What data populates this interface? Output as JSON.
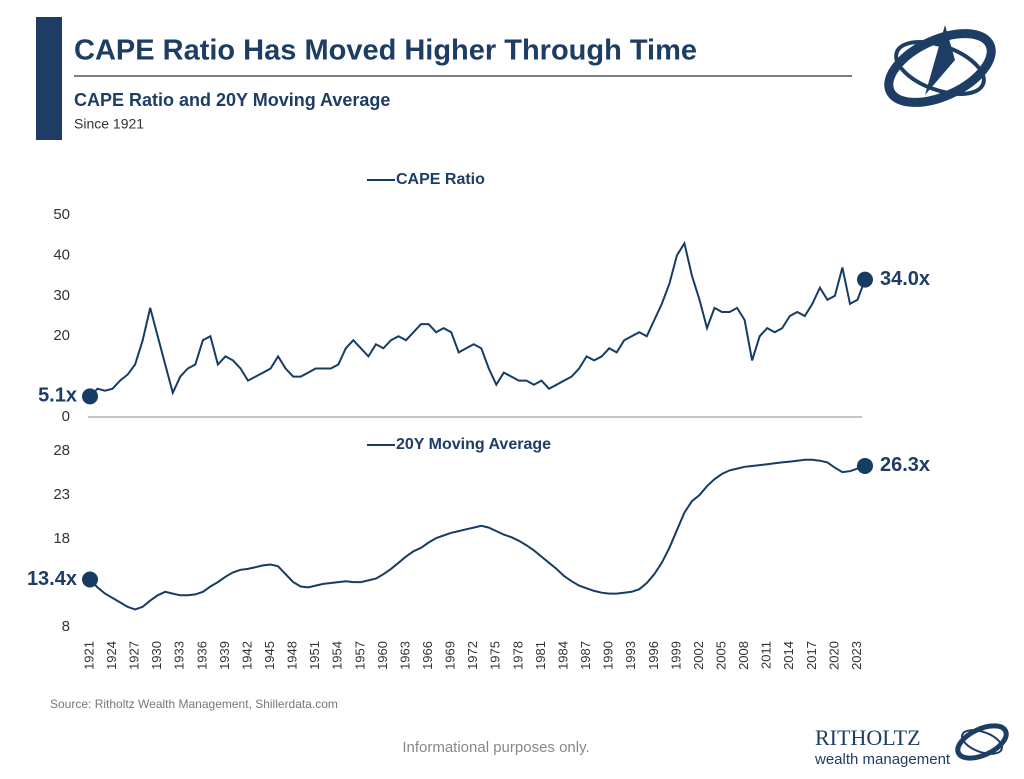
{
  "header": {
    "title": "CAPE Ratio Has Moved Higher Through Time",
    "subtitle": "CAPE Ratio and 20Y Moving Average",
    "since": "Since 1921"
  },
  "source": "Source: Ritholtz Wealth Management, Shillerdata.com",
  "footer": "Informational purposes only.",
  "logo": {
    "name": "RITHOLTZ",
    "tagline": "wealth management"
  },
  "chart_data": [
    {
      "type": "line",
      "xlim": [
        1921,
        2024
      ],
      "ylim": [
        0,
        50
      ],
      "yticks": [
        0,
        20,
        30,
        40,
        50
      ],
      "x": [
        1921,
        1922,
        1923,
        1924,
        1925,
        1926,
        1927,
        1928,
        1929,
        1930,
        1931,
        1932,
        1933,
        1934,
        1935,
        1936,
        1937,
        1938,
        1939,
        1940,
        1941,
        1942,
        1943,
        1944,
        1945,
        1946,
        1947,
        1948,
        1949,
        1950,
        1951,
        1952,
        1953,
        1954,
        1955,
        1956,
        1957,
        1958,
        1959,
        1960,
        1961,
        1962,
        1963,
        1964,
        1965,
        1966,
        1967,
        1968,
        1969,
        1970,
        1971,
        1972,
        1973,
        1974,
        1975,
        1976,
        1977,
        1978,
        1979,
        1980,
        1981,
        1982,
        1983,
        1984,
        1985,
        1986,
        1987,
        1988,
        1989,
        1990,
        1991,
        1992,
        1993,
        1994,
        1995,
        1996,
        1997,
        1998,
        1999,
        2000,
        2001,
        2002,
        2003,
        2004,
        2005,
        2006,
        2007,
        2008,
        2009,
        2010,
        2011,
        2012,
        2013,
        2014,
        2015,
        2016,
        2017,
        2018,
        2019,
        2020,
        2021,
        2022,
        2023,
        2024
      ],
      "series": [
        {
          "name": "CAPE Ratio",
          "color": "#173c63",
          "values": [
            5.1,
            7,
            6.5,
            7,
            9,
            10.5,
            13,
            19,
            27,
            20,
            13,
            6,
            10,
            12,
            13,
            19,
            20,
            13,
            15,
            14,
            12,
            9,
            10,
            11,
            12,
            15,
            12,
            10,
            10,
            11,
            12,
            12,
            12,
            13,
            17,
            19,
            17,
            15,
            18,
            17,
            19,
            20,
            19,
            21,
            23,
            23,
            21,
            22,
            21,
            16,
            17,
            18,
            17,
            12,
            8,
            11,
            10,
            9,
            9,
            8,
            9,
            7,
            8,
            9,
            10,
            12,
            15,
            14,
            15,
            17,
            16,
            19,
            20,
            21,
            20,
            24,
            28,
            33,
            40,
            43,
            35,
            29,
            22,
            27,
            26,
            26,
            27,
            24,
            14,
            20,
            22,
            21,
            22,
            25,
            26,
            25,
            28,
            32,
            29,
            30,
            37,
            28,
            29,
            34
          ]
        }
      ],
      "end_labels": [
        "5.1x",
        "34.0x"
      ]
    },
    {
      "type": "line",
      "xlim": [
        1921,
        2024
      ],
      "ylim": [
        8,
        28
      ],
      "yticks": [
        8,
        18,
        23,
        28
      ],
      "xticks": [
        1921,
        1924,
        1927,
        1930,
        1933,
        1936,
        1939,
        1942,
        1945,
        1948,
        1951,
        1954,
        1957,
        1960,
        1963,
        1966,
        1969,
        1972,
        1975,
        1978,
        1981,
        1984,
        1987,
        1990,
        1993,
        1996,
        1999,
        2002,
        2005,
        2008,
        2011,
        2014,
        2017,
        2020,
        2023
      ],
      "x": [
        1921,
        1922,
        1923,
        1924,
        1925,
        1926,
        1927,
        1928,
        1929,
        1930,
        1931,
        1932,
        1933,
        1934,
        1935,
        1936,
        1937,
        1938,
        1939,
        1940,
        1941,
        1942,
        1943,
        1944,
        1945,
        1946,
        1947,
        1948,
        1949,
        1950,
        1951,
        1952,
        1953,
        1954,
        1955,
        1956,
        1957,
        1958,
        1959,
        1960,
        1961,
        1962,
        1963,
        1964,
        1965,
        1966,
        1967,
        1968,
        1969,
        1970,
        1971,
        1972,
        1973,
        1974,
        1975,
        1976,
        1977,
        1978,
        1979,
        1980,
        1981,
        1982,
        1983,
        1984,
        1985,
        1986,
        1987,
        1988,
        1989,
        1990,
        1991,
        1992,
        1993,
        1994,
        1995,
        1996,
        1997,
        1998,
        1999,
        2000,
        2001,
        2002,
        2003,
        2004,
        2005,
        2006,
        2007,
        2008,
        2009,
        2010,
        2011,
        2012,
        2013,
        2014,
        2015,
        2016,
        2017,
        2018,
        2019,
        2020,
        2021,
        2022,
        2023,
        2024
      ],
      "series": [
        {
          "name": "20Y Moving Average",
          "color": "#173c63",
          "values": [
            13.4,
            12.5,
            11.8,
            11.3,
            10.8,
            10.3,
            10,
            10.3,
            11,
            11.6,
            12,
            11.8,
            11.6,
            11.6,
            11.7,
            12,
            12.6,
            13.1,
            13.7,
            14.2,
            14.5,
            14.6,
            14.8,
            15,
            15.1,
            14.9,
            14,
            13.1,
            12.6,
            12.5,
            12.7,
            12.9,
            13,
            13.1,
            13.2,
            13.1,
            13.1,
            13.3,
            13.5,
            14,
            14.6,
            15.3,
            16,
            16.6,
            17,
            17.6,
            18.1,
            18.4,
            18.7,
            18.9,
            19.1,
            19.3,
            19.5,
            19.3,
            18.9,
            18.5,
            18.2,
            17.8,
            17.3,
            16.7,
            16,
            15.3,
            14.6,
            13.8,
            13.2,
            12.7,
            12.4,
            12.1,
            11.9,
            11.8,
            11.8,
            11.9,
            12,
            12.3,
            13,
            14,
            15.3,
            17,
            19,
            21,
            22.3,
            23,
            24,
            24.8,
            25.4,
            25.8,
            26,
            26.2,
            26.3,
            26.4,
            26.5,
            26.6,
            26.7,
            26.8,
            26.9,
            27,
            27,
            26.9,
            26.7,
            26.1,
            25.6,
            25.7,
            26,
            26.3
          ]
        }
      ],
      "end_labels": [
        "13.4x",
        "26.3x"
      ]
    }
  ]
}
